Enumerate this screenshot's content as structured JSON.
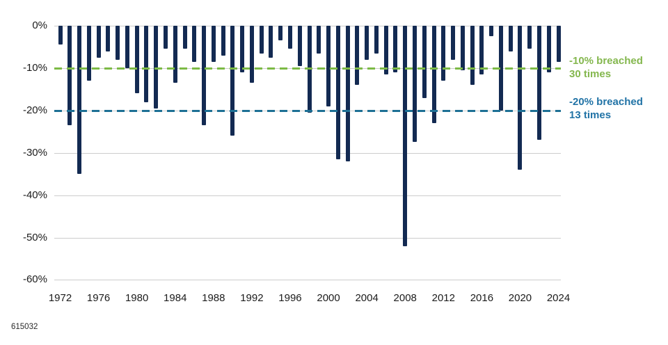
{
  "chart_data": {
    "type": "bar",
    "title": "",
    "xlabel": "",
    "ylabel": "",
    "ylim": [
      -60,
      0
    ],
    "grid": true,
    "x_years": [
      1972,
      1973,
      1974,
      1975,
      1976,
      1977,
      1978,
      1979,
      1980,
      1981,
      1982,
      1983,
      1984,
      1985,
      1986,
      1987,
      1988,
      1989,
      1990,
      1991,
      1992,
      1993,
      1994,
      1995,
      1996,
      1997,
      1998,
      1999,
      2000,
      2001,
      2002,
      2003,
      2004,
      2005,
      2006,
      2007,
      2008,
      2009,
      2010,
      2011,
      2012,
      2013,
      2014,
      2015,
      2016,
      2017,
      2018,
      2019,
      2020,
      2021,
      2022,
      2023,
      2024
    ],
    "values": [
      -4.5,
      -23.5,
      -35,
      -13,
      -7.5,
      -6,
      -8,
      -10,
      -16,
      -18,
      -19.5,
      -5.5,
      -13.5,
      -5.5,
      -8.5,
      -23.5,
      -8.5,
      -7,
      -26,
      -11,
      -13.5,
      -6.5,
      -7.5,
      -3.5,
      -5.5,
      -9.5,
      -20.5,
      -6.5,
      -19,
      -31.5,
      -32,
      -14,
      -8,
      -6.5,
      -11.5,
      -11,
      -52,
      -27.5,
      -17,
      -23,
      -13,
      -8,
      -10.5,
      -14,
      -11.5,
      -2.5,
      -20,
      -6,
      -34,
      -5.5,
      -27,
      -11,
      -8.5
    ],
    "y_tick_values": [
      0,
      -10,
      -20,
      -30,
      -40,
      -50,
      -60
    ],
    "y_tick_labels": [
      "0%",
      "-10%",
      "-20%",
      "-30%",
      "-40%",
      "-50%",
      "-60%"
    ],
    "x_tick_years": [
      1972,
      1976,
      1980,
      1984,
      1988,
      1992,
      1996,
      2000,
      2004,
      2008,
      2012,
      2016,
      2020,
      2024
    ],
    "reference_lines": [
      {
        "value": -10,
        "breach_count": 30,
        "label_line1": "-10% breached",
        "label_line2": "30 times",
        "line_color": "#7cba45",
        "text_color": "#84b74e"
      },
      {
        "value": -20,
        "breach_count": 13,
        "label_line1": "-20% breached",
        "label_line2": "13 times",
        "line_color": "#1d7095",
        "text_color": "#2173a6"
      }
    ],
    "bar_color": "#132a52",
    "grid_color": "#cccccc",
    "legend": "none"
  },
  "footer": {
    "doc_id": "615032"
  }
}
